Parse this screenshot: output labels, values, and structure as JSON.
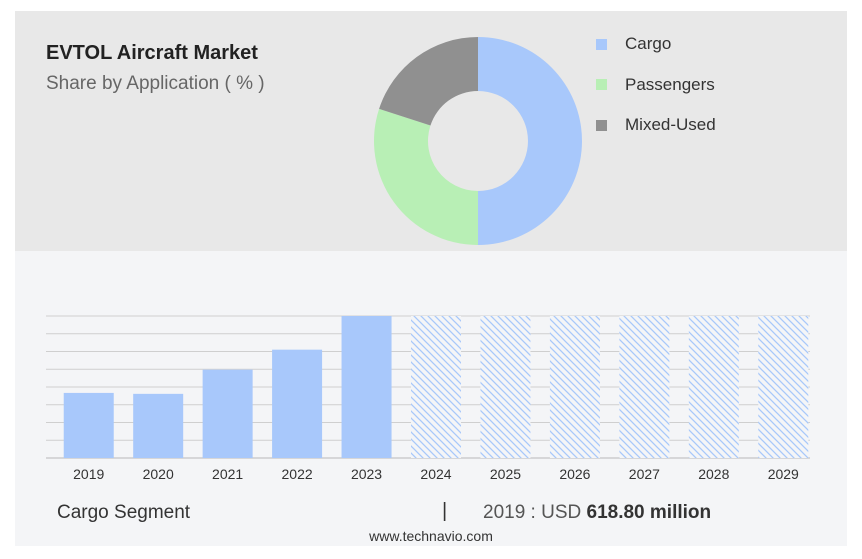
{
  "header": {
    "title": "EVTOL Aircraft Market",
    "subtitle": "Share by Application ( % )"
  },
  "legend": [
    {
      "label": "Cargo",
      "color": "#a8c8fb"
    },
    {
      "label": "Passengers",
      "color": "#b8efb5"
    },
    {
      "label": "Mixed-Used",
      "color": "#909090"
    }
  ],
  "footer": {
    "segment": "Cargo Segment",
    "separator": "|",
    "year_label": "2019 : USD",
    "value": "618.80 million",
    "source": "www.technavio.com"
  },
  "chart_data": [
    {
      "type": "pie",
      "categories": [
        "Cargo",
        "Passengers",
        "Mixed-Used"
      ],
      "values": [
        50,
        30,
        20
      ],
      "colors": [
        "#a8c8fb",
        "#b8efb5",
        "#909090"
      ]
    },
    {
      "type": "bar",
      "categories": [
        "2019",
        "2020",
        "2021",
        "2022",
        "2023",
        "2024",
        "2025",
        "2026",
        "2027",
        "2028",
        "2029"
      ],
      "values": [
        618.8,
        610,
        840,
        1030,
        1350,
        1350,
        1350,
        1350,
        1350,
        1350,
        1350
      ],
      "forecast_from": "2024",
      "color": "#a8c8fb",
      "ylim": [
        0,
        1350
      ],
      "grid": true
    }
  ]
}
